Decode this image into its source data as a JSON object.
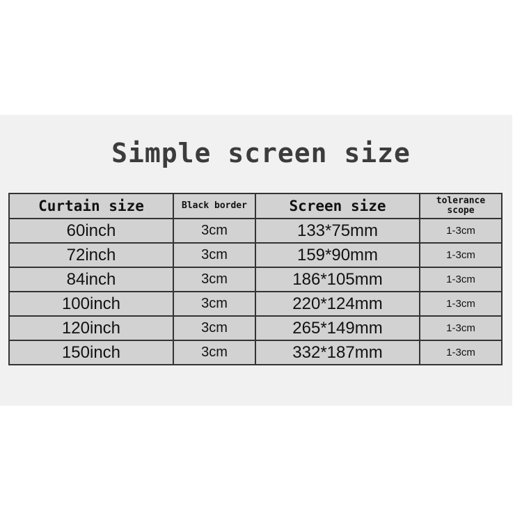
{
  "title": "Simple screen size",
  "table": {
    "headers": [
      "Curtain size",
      "Black border",
      "Screen size",
      "tolerance scope"
    ],
    "rows": [
      [
        "60inch",
        "3cm",
        "133*75mm",
        "1-3cm"
      ],
      [
        "72inch",
        "3cm",
        "159*90mm",
        "1-3cm"
      ],
      [
        "84inch",
        "3cm",
        "186*105mm",
        "1-3cm"
      ],
      [
        "100inch",
        "3cm",
        "220*124mm",
        "1-3cm"
      ],
      [
        "120inch",
        "3cm",
        "265*149mm",
        "1-3cm"
      ],
      [
        "150inch",
        "3cm",
        "332*187mm",
        "1-3cm"
      ]
    ]
  }
}
